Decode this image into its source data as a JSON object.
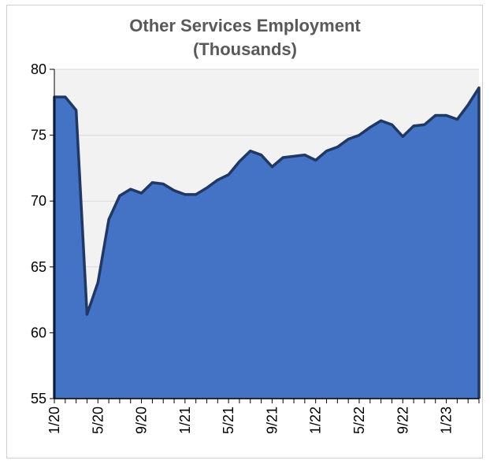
{
  "chart_data": {
    "type": "area",
    "title_line1": "Other Services Employment",
    "title_line2": "(Thousands)",
    "ylim": [
      55,
      80
    ],
    "y_ticks": [
      55,
      60,
      65,
      70,
      75,
      80
    ],
    "grid": "horizontal",
    "x_tick_labels": [
      "1/20",
      "5/20",
      "9/20",
      "1/21",
      "5/21",
      "9/21",
      "1/22",
      "5/22",
      "9/22",
      "1/23"
    ],
    "months": [
      "1/20",
      "2/20",
      "3/20",
      "4/20",
      "5/20",
      "6/20",
      "7/20",
      "8/20",
      "9/20",
      "10/20",
      "11/20",
      "12/20",
      "1/21",
      "2/21",
      "3/21",
      "4/21",
      "5/21",
      "6/21",
      "7/21",
      "8/21",
      "9/21",
      "10/21",
      "11/21",
      "12/21",
      "1/22",
      "2/22",
      "3/22",
      "4/22",
      "5/22",
      "6/22",
      "7/22",
      "8/22",
      "9/22",
      "10/22",
      "11/22",
      "12/22",
      "1/23",
      "2/23",
      "3/23",
      "4/23"
    ],
    "values": [
      77.9,
      77.9,
      76.9,
      61.4,
      63.8,
      68.6,
      70.4,
      70.9,
      70.6,
      71.4,
      71.3,
      70.8,
      70.5,
      70.5,
      71.0,
      71.6,
      72.0,
      73.0,
      73.8,
      73.5,
      72.6,
      73.3,
      73.4,
      73.5,
      73.1,
      73.8,
      74.1,
      74.7,
      75.0,
      75.6,
      76.1,
      75.8,
      74.9,
      75.7,
      75.8,
      76.5,
      76.5,
      76.2,
      77.3,
      78.6
    ],
    "colors": {
      "fill": "#4472C4",
      "line": "#1F3864",
      "plot_bg": "#F2F2F2",
      "grid": "#D9D9D9"
    }
  }
}
